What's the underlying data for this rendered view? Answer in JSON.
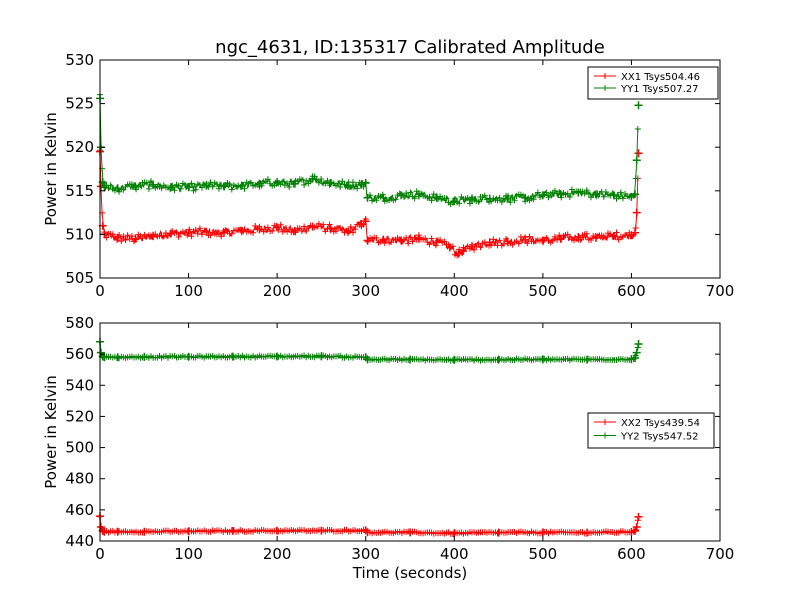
{
  "title": "ngc_4631, ID:135317 Calibrated Amplitude",
  "colors": {
    "xx": "#ff0000",
    "yy": "#008000",
    "axes": "#000000",
    "background": "#ffffff"
  },
  "chart_data": [
    {
      "type": "line",
      "title": "ngc_4631, ID:135317 Calibrated Amplitude",
      "xlabel": "",
      "ylabel": "Power in Kelvin",
      "xlim": [
        0,
        700
      ],
      "ylim": [
        505,
        530
      ],
      "xticks": [
        "0",
        "100",
        "200",
        "300",
        "400",
        "500",
        "600",
        "700"
      ],
      "yticks": [
        "505",
        "510",
        "515",
        "520",
        "525",
        "530"
      ],
      "grid": false,
      "legend": "top-right",
      "marker": "+",
      "series": [
        {
          "name": "XX1 Tsys504.46",
          "color": "#ff0000",
          "x": [
            0,
            1,
            3,
            5,
            20,
            40,
            60,
            80,
            100,
            120,
            140,
            160,
            180,
            200,
            220,
            240,
            260,
            280,
            295,
            300,
            302,
            320,
            340,
            360,
            380,
            395,
            405,
            410,
            420,
            440,
            460,
            480,
            500,
            520,
            540,
            560,
            580,
            600,
            604,
            606,
            608
          ],
          "y": [
            519.5,
            515.5,
            511,
            510,
            509.6,
            509.5,
            509.8,
            510.1,
            510.2,
            510.3,
            510.2,
            510.4,
            510.6,
            510.8,
            510.4,
            510.9,
            510.7,
            510.3,
            511.2,
            511.5,
            509.3,
            509.4,
            509.3,
            509.5,
            509.1,
            508.5,
            507.8,
            508.1,
            508.6,
            509.1,
            509.2,
            509.4,
            509.3,
            509.5,
            509.7,
            509.6,
            509.8,
            509.9,
            510.2,
            512.5,
            519.3
          ]
        },
        {
          "name": "YY1 Tsys507.27",
          "color": "#008000",
          "x": [
            0,
            1,
            3,
            5,
            20,
            40,
            60,
            80,
            100,
            120,
            140,
            160,
            180,
            200,
            220,
            240,
            260,
            280,
            295,
            300,
            302,
            320,
            340,
            360,
            380,
            400,
            420,
            440,
            460,
            480,
            500,
            520,
            540,
            560,
            580,
            600,
            604,
            606,
            608
          ],
          "y": [
            525.6,
            520,
            516,
            515.4,
            515.3,
            515.5,
            515.7,
            515.4,
            515.4,
            515.6,
            515.5,
            515.6,
            515.8,
            516.0,
            515.8,
            516.4,
            515.9,
            515.6,
            515.7,
            515.9,
            514.2,
            514.2,
            514.5,
            514.6,
            514.2,
            513.8,
            514.0,
            514.1,
            514.1,
            514.2,
            514.5,
            514.6,
            514.8,
            514.6,
            514.5,
            514.3,
            514.6,
            518.5,
            524.8
          ]
        }
      ]
    },
    {
      "type": "line",
      "title": "",
      "xlabel": "Time (seconds)",
      "ylabel": "Power in Kelvin",
      "xlim": [
        0,
        700
      ],
      "ylim": [
        440,
        580
      ],
      "xticks": [
        "0",
        "100",
        "200",
        "300",
        "400",
        "500",
        "600",
        "700"
      ],
      "yticks": [
        "440",
        "460",
        "480",
        "500",
        "520",
        "540",
        "560",
        "580"
      ],
      "grid": false,
      "legend": "center-right",
      "marker": "+",
      "series": [
        {
          "name": "XX2 Tsys439.54",
          "color": "#ff0000",
          "x": [
            0,
            1,
            3,
            5,
            20,
            50,
            100,
            150,
            200,
            250,
            300,
            302,
            350,
            400,
            450,
            500,
            550,
            600,
            604,
            606,
            608
          ],
          "y": [
            456,
            449,
            446.5,
            446,
            446,
            446,
            446.2,
            446.4,
            446.6,
            446.6,
            446.8,
            445.6,
            445.5,
            445,
            445.4,
            445.5,
            445.4,
            445.8,
            446.5,
            449,
            455.5
          ]
        },
        {
          "name": "YY2 Tsys547.52",
          "color": "#008000",
          "x": [
            0,
            1,
            3,
            5,
            20,
            50,
            100,
            150,
            200,
            250,
            300,
            302,
            350,
            400,
            450,
            500,
            550,
            600,
            604,
            606,
            608
          ],
          "y": [
            568,
            561,
            558.5,
            558,
            558,
            558.2,
            558.3,
            558.4,
            558.5,
            558.6,
            558,
            556.6,
            556.5,
            556.3,
            556.5,
            556.6,
            556.5,
            556.8,
            557.5,
            561,
            566.5
          ]
        }
      ]
    }
  ]
}
